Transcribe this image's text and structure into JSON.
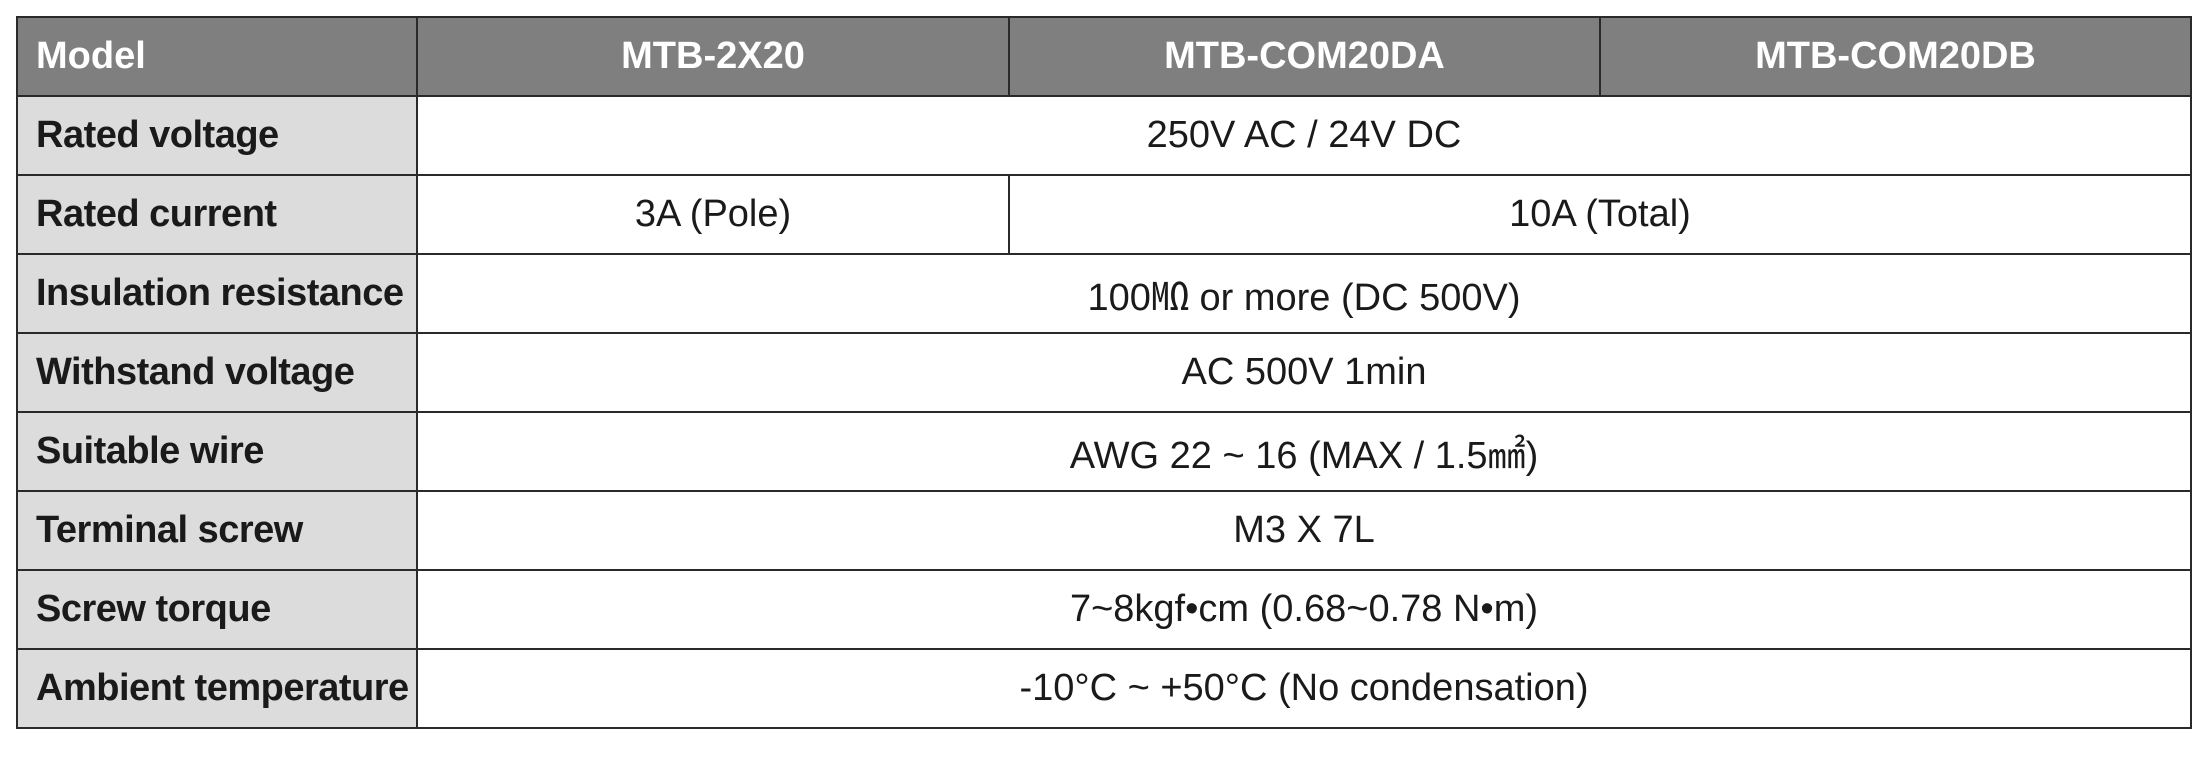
{
  "header": {
    "label": "Model",
    "models": [
      "MTB-2X20",
      "MTB-COM20DA",
      "MTB-COM20DB"
    ]
  },
  "rows": {
    "rated_voltage": {
      "label": "Rated voltage",
      "value": "250V AC / 24V DC"
    },
    "rated_current": {
      "label": "Rated current",
      "value_2x20": "3A (Pole)",
      "value_com20": "10A (Total)"
    },
    "insulation_resistance": {
      "label": "Insulation resistance",
      "value": "100㏁ or more (DC 500V)"
    },
    "withstand_voltage": {
      "label": "Withstand voltage",
      "value": "AC 500V 1min"
    },
    "suitable_wire": {
      "label": "Suitable wire",
      "value": "AWG 22 ~ 16 (MAX / 1.5㎟)"
    },
    "terminal_screw": {
      "label": "Terminal screw",
      "value": "M3 X 7L"
    },
    "screw_torque": {
      "label": "Screw torque",
      "value": "7~8kgf•cm (0.68~0.78 N•m)"
    },
    "ambient_temperature": {
      "label": "Ambient temperature",
      "value": "-10°C ~ +50°C (No condensation)"
    }
  }
}
